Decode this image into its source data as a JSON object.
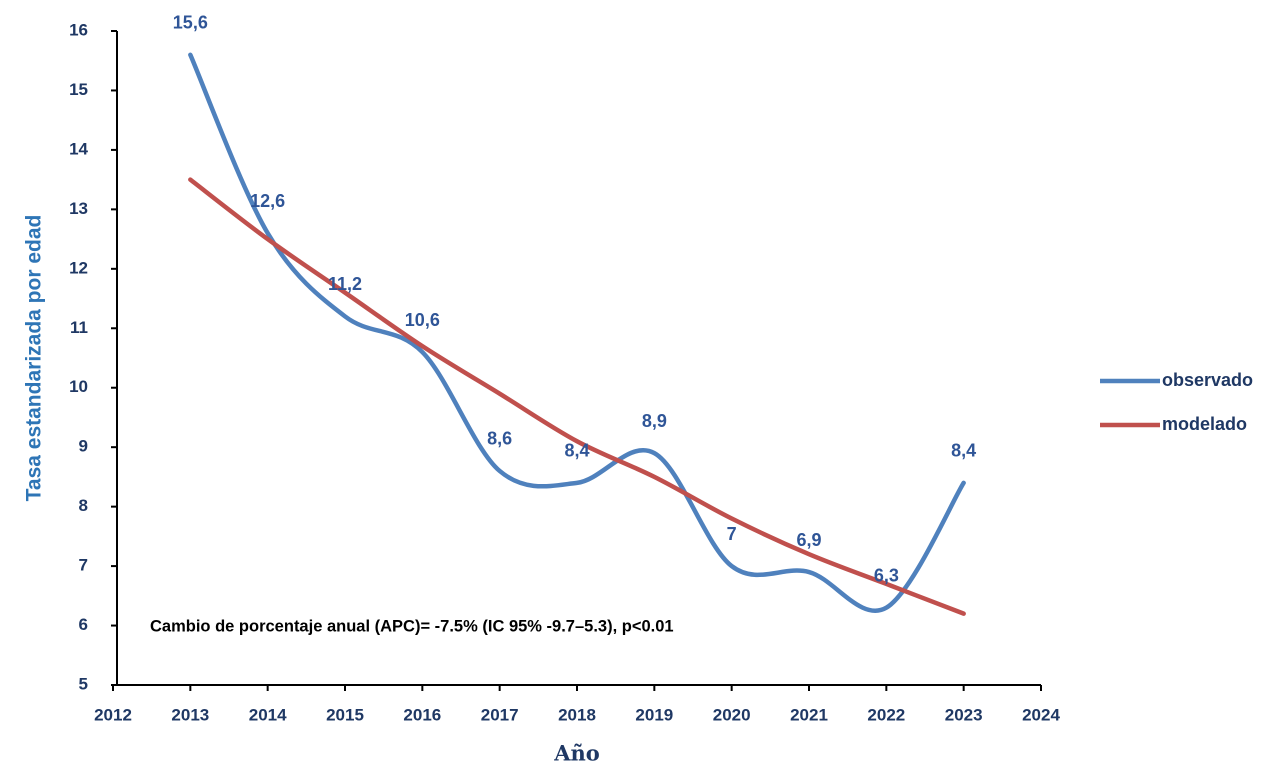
{
  "chart_data": {
    "type": "line",
    "y_label": "Tasa estandarizada por edad",
    "x_label": "Año",
    "annotation": "Cambio de porcentaje anual (APC)= -7.5% (IC 95% -9.7–5.3), p<0.01",
    "x": [
      2013,
      2014,
      2015,
      2016,
      2017,
      2018,
      2019,
      2020,
      2021,
      2022,
      2023
    ],
    "series": [
      {
        "name": "observado",
        "color": "#4F81BD",
        "smooth": true,
        "values": [
          15.6,
          12.6,
          11.2,
          10.6,
          8.6,
          8.4,
          8.9,
          7,
          6.9,
          6.3,
          8.4
        ],
        "value_labels": [
          "15,6",
          "12,6",
          "11,2",
          "10,6",
          "8,6",
          "8,4",
          "8,9",
          "7",
          "6,9",
          "6,3",
          "8,4"
        ]
      },
      {
        "name": "modelado",
        "color": "#C0504D",
        "smooth": true,
        "values": [
          13.5,
          12.5,
          11.6,
          10.7,
          9.9,
          9.1,
          8.5,
          7.8,
          7.2,
          6.7,
          6.2
        ]
      }
    ],
    "xlim": [
      2012,
      2024
    ],
    "xticks": [
      2012,
      2013,
      2014,
      2015,
      2016,
      2017,
      2018,
      2019,
      2020,
      2021,
      2022,
      2023,
      2024
    ],
    "ylim": [
      5,
      16
    ],
    "yticks": [
      5,
      6,
      7,
      8,
      9,
      10,
      11,
      12,
      13,
      14,
      15,
      16
    ],
    "legend": "right"
  }
}
